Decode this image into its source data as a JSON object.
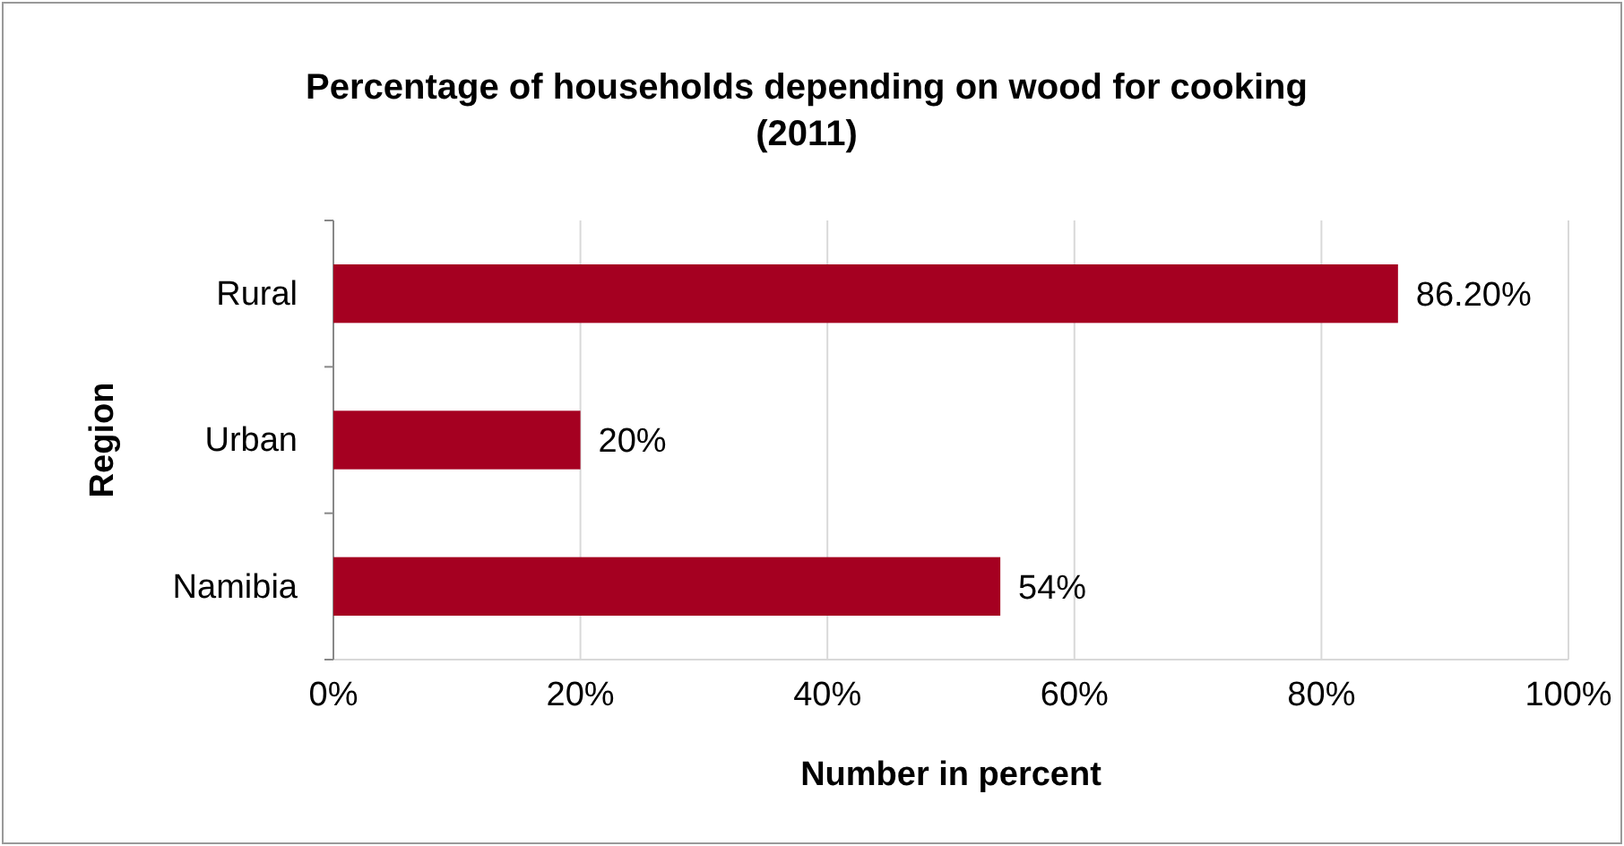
{
  "chart_data": {
    "type": "bar",
    "orientation": "horizontal",
    "title": "Percentage of households depending on wood for cooking (2011)",
    "xlabel": "Number in percent",
    "ylabel": "Region",
    "categories": [
      "Rural",
      "Urban",
      "Namibia"
    ],
    "values": [
      86.2,
      20,
      54
    ],
    "value_labels": [
      "86.20%",
      "20%",
      "54%"
    ],
    "color": "#a50021",
    "xlim": [
      0,
      100
    ],
    "xticks": [
      {
        "value": 0,
        "label": "0%"
      },
      {
        "value": 20,
        "label": "20%"
      },
      {
        "value": 40,
        "label": "40%"
      },
      {
        "value": 60,
        "label": "60%"
      },
      {
        "value": 80,
        "label": "80%"
      },
      {
        "value": 100,
        "label": "100%"
      }
    ],
    "grid": "x"
  }
}
